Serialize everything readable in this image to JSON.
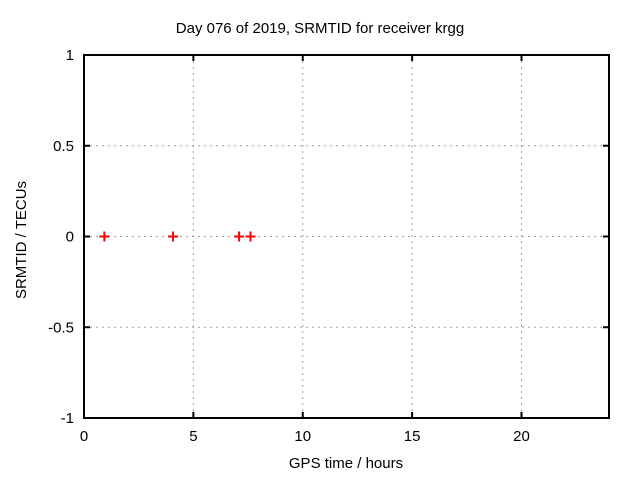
{
  "chart_data": {
    "type": "scatter",
    "title": "Day 076 of 2019, SRMTID for receiver krgg",
    "xlabel": "GPS time / hours",
    "ylabel": "SRMTID / TECUs",
    "xlim": [
      0,
      24
    ],
    "ylim": [
      -1,
      1
    ],
    "xticks": {
      "values": [
        0,
        5,
        10,
        15,
        20
      ],
      "labels": [
        "0",
        "5",
        "10",
        "15",
        "20"
      ]
    },
    "yticks": {
      "values": [
        -1,
        -0.5,
        0,
        0.5,
        1
      ],
      "labels": [
        "-1",
        "-0.5",
        "0",
        "0.5",
        "1"
      ]
    },
    "grid": true,
    "grid_style": "dotted",
    "grid_color": "#a0a0a0",
    "axis_color": "#000000",
    "border": "box",
    "tick_direction": "in",
    "legend": "none",
    "series": [
      {
        "name": "SRMTID",
        "marker": "plus",
        "color": "#ff0000",
        "points": [
          {
            "x": 0.93,
            "y": 0
          },
          {
            "x": 4.07,
            "y": 0
          },
          {
            "x": 7.09,
            "y": 0
          },
          {
            "x": 7.61,
            "y": 0
          }
        ]
      }
    ]
  }
}
